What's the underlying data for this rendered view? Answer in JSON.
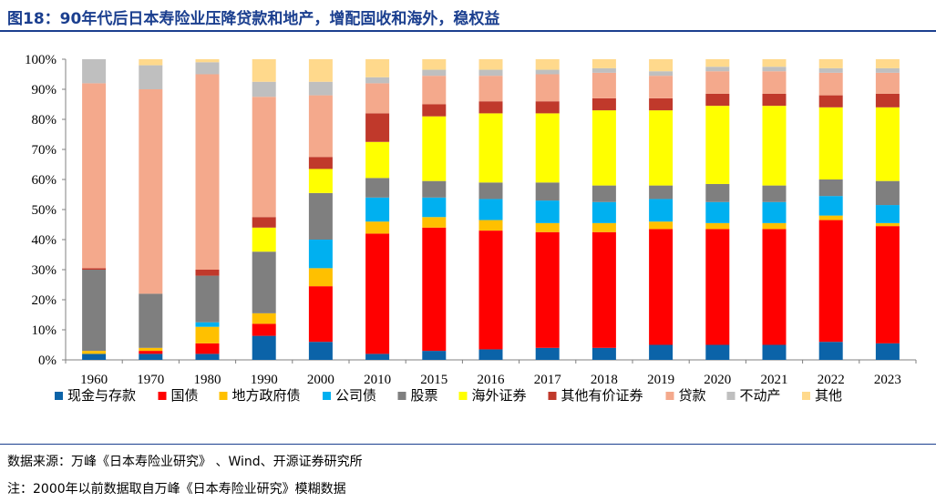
{
  "header": {
    "title": "图18：90年代后日本寿险业压降贷款和地产，增配固收和海外，稳权益"
  },
  "footer": {
    "source": "数据来源：万峰《日本寿险业研究》 、Wind、开源证券研究所",
    "note": "注：2000年以前数据取自万峰《日本寿险业研究》模糊数据"
  },
  "chart_data": {
    "type": "bar",
    "stacked": true,
    "title": "",
    "xlabel": "",
    "ylabel": "",
    "ylim": [
      0,
      100
    ],
    "ytick_labels": [
      "0%",
      "10%",
      "20%",
      "30%",
      "40%",
      "50%",
      "60%",
      "70%",
      "80%",
      "90%",
      "100%"
    ],
    "legend_position": "bottom",
    "grid": false,
    "categories": [
      "1960",
      "1970",
      "1980",
      "1990",
      "2000",
      "2010",
      "2015",
      "2016",
      "2017",
      "2018",
      "2019",
      "2020",
      "2021",
      "2022",
      "2023"
    ],
    "series": [
      {
        "name": "现金与存款",
        "color": "#0b63a8",
        "values": [
          2,
          2,
          2,
          8,
          6,
          2,
          3,
          3.5,
          4,
          4,
          5,
          5,
          5,
          6,
          5.5
        ]
      },
      {
        "name": "国债",
        "color": "#ff0000",
        "values": [
          0,
          1,
          3.5,
          4,
          18.5,
          40,
          41,
          39.5,
          38.5,
          38.5,
          38.5,
          38.5,
          38.5,
          40.5,
          39
        ]
      },
      {
        "name": "地方政府债",
        "color": "#ffc000",
        "values": [
          1,
          1,
          5.5,
          3.5,
          6,
          4,
          3.5,
          3.5,
          3,
          3,
          2.5,
          2,
          2,
          1.5,
          1
        ]
      },
      {
        "name": "公司债",
        "color": "#00b0f0",
        "values": [
          0,
          0,
          1.5,
          0,
          9.5,
          8,
          6.5,
          7,
          7.5,
          7,
          7.5,
          7,
          7,
          6.5,
          6
        ]
      },
      {
        "name": "股票",
        "color": "#7f7f7f",
        "values": [
          27,
          18,
          15.5,
          20.5,
          15.5,
          6.5,
          5.5,
          5.5,
          6,
          5.5,
          4.5,
          6,
          5.5,
          5.5,
          8
        ]
      },
      {
        "name": "海外证券",
        "color": "#ffff00",
        "values": [
          0,
          0,
          0,
          8,
          8,
          12,
          21.5,
          23,
          23,
          25,
          25,
          26,
          26.5,
          24,
          24.5
        ]
      },
      {
        "name": "其他有价证券",
        "color": "#c0392b",
        "values": [
          0.5,
          0,
          2,
          3.5,
          4,
          9.5,
          4,
          4,
          4,
          4,
          4,
          4,
          4,
          4,
          4.5
        ]
      },
      {
        "name": "贷款",
        "color": "#f4a98c",
        "values": [
          61.5,
          68,
          65,
          40,
          20.5,
          10,
          9.5,
          8.5,
          9,
          8.5,
          7.5,
          7.5,
          7.5,
          7.5,
          7
        ]
      },
      {
        "name": "不动产",
        "color": "#bfbfbf",
        "values": [
          8,
          8,
          4,
          5,
          4.5,
          2,
          2,
          2,
          1.5,
          1.5,
          1.5,
          1.5,
          1.5,
          1.5,
          1.5
        ]
      },
      {
        "name": "其他",
        "color": "#ffd98c",
        "values": [
          0,
          2,
          1,
          7.5,
          7.5,
          6,
          3.5,
          3.5,
          3.5,
          3,
          4,
          2.5,
          2.5,
          3,
          3
        ]
      }
    ]
  }
}
